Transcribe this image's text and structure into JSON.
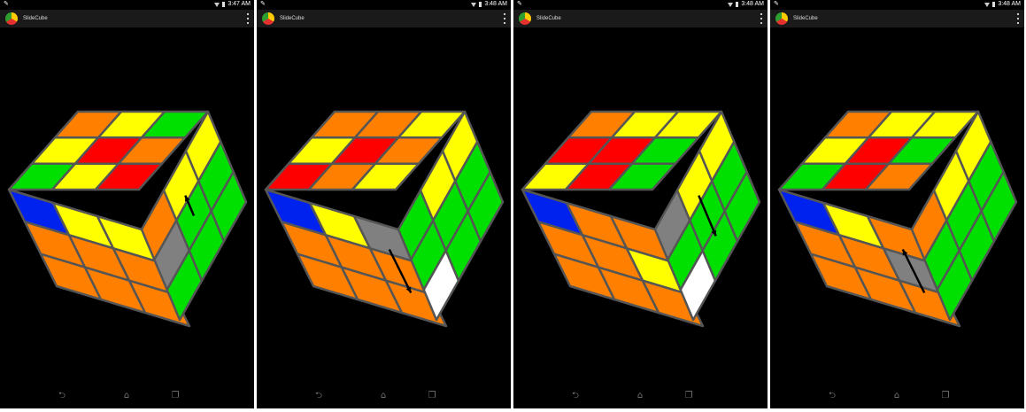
{
  "app_title": "SlideCube",
  "icons": {
    "back": "⮌",
    "home": "⌂",
    "recent": "❐",
    "edit": "✎"
  },
  "colors": {
    "orange": "#ff8000",
    "yellow": "#ffff00",
    "green": "#00e000",
    "red": "#ff0000",
    "blue": "#0022ee",
    "white": "#ffffff",
    "grey": "#808080",
    "grid": "#555555"
  },
  "screens": [
    {
      "time": "3:47 AM",
      "top": [
        "orange",
        "yellow",
        "green",
        "yellow",
        "red",
        "orange",
        "green",
        "yellow",
        "red"
      ],
      "front": [
        "blue",
        "yellow",
        "yellow",
        "orange",
        "orange",
        "orange",
        "orange",
        "orange",
        "orange"
      ],
      "right": [
        "orange",
        "yellow",
        "yellow",
        "grey",
        "green",
        "green",
        "green",
        "green",
        "green"
      ],
      "arrow": {
        "face": "right",
        "from": 0.5,
        "to": 0.0,
        "marker": "right-middle"
      }
    },
    {
      "time": "3:48 AM",
      "top": [
        "orange",
        "orange",
        "yellow",
        "yellow",
        "red",
        "orange",
        "red",
        "orange",
        "yellow"
      ],
      "front": [
        "blue",
        "yellow",
        "grey",
        "orange",
        "orange",
        "orange",
        "orange",
        "orange",
        "orange"
      ],
      "right": [
        "green",
        "yellow",
        "yellow",
        "green",
        "green",
        "green",
        "white",
        "green",
        "green"
      ],
      "arrow": {
        "face": "front",
        "from": 0.0,
        "to": 1.0,
        "marker": "front-top-right"
      }
    },
    {
      "time": "3:48 AM",
      "top": [
        "orange",
        "yellow",
        "yellow",
        "red",
        "red",
        "green",
        "yellow",
        "red",
        "green"
      ],
      "front": [
        "blue",
        "orange",
        "orange",
        "orange",
        "orange",
        "yellow",
        "orange",
        "orange",
        "orange"
      ],
      "right": [
        "grey",
        "yellow",
        "yellow",
        "green",
        "green",
        "green",
        "white",
        "green",
        "green"
      ],
      "arrow": {
        "face": "right",
        "from": 0.0,
        "to": 1.0,
        "marker": "right-top"
      }
    },
    {
      "time": "3:48 AM",
      "top": [
        "orange",
        "yellow",
        "yellow",
        "yellow",
        "red",
        "green",
        "green",
        "red",
        "orange"
      ],
      "front": [
        "blue",
        "yellow",
        "orange",
        "orange",
        "orange",
        "grey",
        "orange",
        "orange",
        "orange"
      ],
      "right": [
        "orange",
        "yellow",
        "yellow",
        "green",
        "green",
        "green",
        "green",
        "green",
        "green"
      ],
      "arrow": {
        "face": "front",
        "from": 1.0,
        "to": 0.0,
        "marker": "front-mid-right"
      }
    }
  ]
}
